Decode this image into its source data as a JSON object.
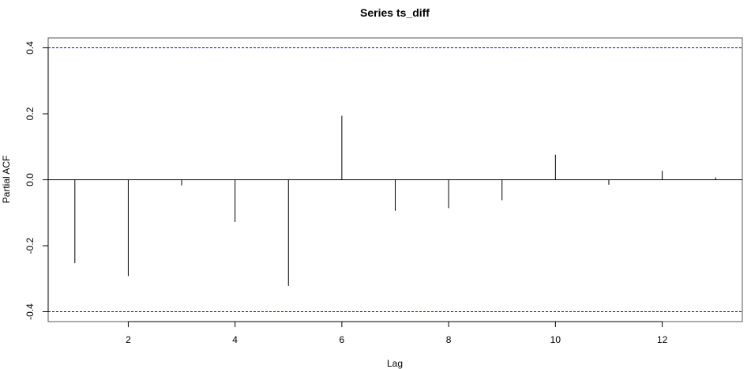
{
  "chart_data": {
    "type": "bar",
    "title": "Series  ts_diff",
    "xlabel": "Lag",
    "ylabel": "Partial ACF",
    "x": [
      1,
      2,
      3,
      4,
      5,
      6,
      7,
      8,
      9,
      10,
      11,
      12,
      13
    ],
    "values": [
      -0.253,
      -0.292,
      -0.017,
      -0.128,
      -0.322,
      0.194,
      -0.094,
      -0.086,
      -0.062,
      0.076,
      -0.015,
      0.027,
      0.007
    ],
    "xlim": [
      0.5,
      13.5
    ],
    "ylim": [
      -0.43,
      0.43
    ],
    "xticks": [
      2,
      4,
      6,
      8,
      10,
      12
    ],
    "yticks": [
      -0.4,
      -0.2,
      0.0,
      0.2,
      0.4
    ],
    "ytick_labels": [
      "-0.4",
      "-0.2",
      "0.0",
      "0.2",
      "0.4"
    ],
    "confidence_bounds": [
      0.4,
      -0.4
    ],
    "grid": false,
    "colors": {
      "bars": "#000000",
      "bounds": "#0000ff",
      "axes": "#000000"
    }
  }
}
